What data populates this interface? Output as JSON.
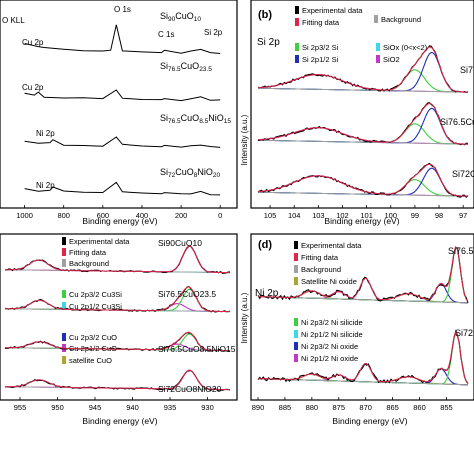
{
  "chart_data": [
    {
      "panel": "a",
      "type": "line",
      "xlabel": "Binding energy (eV)",
      "ylabel": "",
      "xlim": [
        1100,
        -50
      ],
      "xticks": [
        1000,
        800,
        600,
        400,
        200,
        0
      ],
      "xtick_labels": [
        "1000",
        "800",
        "600",
        "400",
        "200",
        "0"
      ],
      "peak_labels": [
        "O KLL",
        "O 1s",
        "Cu 2p",
        "C 1s",
        "Si 2p",
        "Cu 2p",
        "Ni 2p",
        "Ni 2p"
      ],
      "series": [
        {
          "name": "Si90CuO10",
          "label_main": "Si",
          "label_sub": "90",
          "label_main2": "CuO",
          "label_sub2": "10",
          "offset": 3,
          "x": [
            1000,
            930,
            900,
            800,
            700,
            600,
            560,
            531,
            500,
            400,
            300,
            285,
            200,
            150,
            100,
            50,
            0
          ],
          "y": [
            1.2,
            1.0,
            0.8,
            0.6,
            0.5,
            0.45,
            0.5,
            3.4,
            0.5,
            0.35,
            0.3,
            0.55,
            0.25,
            0.4,
            0.6,
            0.3,
            0.2
          ]
        },
        {
          "name": "Si76.5CuO23.5",
          "label_main": "Si",
          "label_sub": "76.5",
          "label_main2": "CuO",
          "label_sub2": "23.5",
          "offset": 2,
          "x": [
            1000,
            950,
            930,
            900,
            800,
            700,
            600,
            531,
            500,
            400,
            300,
            285,
            200,
            150,
            100,
            50,
            0
          ],
          "y": [
            0.9,
            0.8,
            1.1,
            0.6,
            0.5,
            0.4,
            0.38,
            1.4,
            0.45,
            0.3,
            0.28,
            0.45,
            0.22,
            0.35,
            0.55,
            0.25,
            0.2
          ]
        },
        {
          "name": "Si76.5CuO8.5NiO15",
          "label_main": "Si",
          "label_sub": "76.5",
          "label_main2": "CuO",
          "label_sub2": "8.5",
          "label_main3": "NiO",
          "label_sub3": "15",
          "offset": 1,
          "x": [
            1000,
            930,
            870,
            855,
            800,
            700,
            600,
            531,
            500,
            400,
            300,
            285,
            200,
            150,
            100,
            50,
            0
          ],
          "y": [
            0.8,
            0.6,
            0.7,
            1.0,
            0.5,
            0.4,
            0.35,
            1.4,
            0.45,
            0.3,
            0.25,
            0.4,
            0.2,
            0.3,
            0.5,
            0.2,
            0.15
          ]
        },
        {
          "name": "Si72CuO8NiO20",
          "label_main": "Si",
          "label_sub": "72",
          "label_main2": "CuO",
          "label_sub2": "8",
          "label_main3": "NiO",
          "label_sub3": "20",
          "offset": 0,
          "x": [
            1000,
            930,
            870,
            855,
            800,
            700,
            600,
            531,
            500,
            400,
            300,
            285,
            200,
            150,
            100,
            50,
            0
          ],
          "y": [
            0.8,
            0.55,
            0.7,
            1.0,
            0.5,
            0.4,
            0.35,
            1.5,
            0.45,
            0.3,
            0.25,
            0.4,
            0.2,
            0.3,
            0.5,
            0.2,
            0.15
          ]
        }
      ]
    },
    {
      "panel": "b",
      "panel_label": "(b)",
      "type": "line",
      "xlabel": "Binding energy (eV)",
      "ylabel": "Intensity (a.u.)",
      "xlim": [
        105.5,
        96.8
      ],
      "xticks": [
        105,
        104,
        103,
        102,
        101,
        100,
        99,
        98,
        97
      ],
      "xtick_labels": [
        "105",
        "104",
        "103",
        "102",
        "101",
        "100",
        "99",
        "98",
        "97"
      ],
      "region_label": "Si 2p",
      "legend": [
        "Experimental data",
        "Background",
        "Fitting data",
        "Si 2p3/2 Si",
        "Si 2p1/2 Si",
        "SiOx (0<x<2)",
        "SiO2"
      ],
      "sample_labels": [
        "Si7",
        "Si76.5Cu",
        "Si72C"
      ],
      "series": [
        {
          "name": "top",
          "offset": 2,
          "peaks": [
            {
              "center": 103.0,
              "height": 0.38,
              "width": 1.0
            },
            {
              "center": 99.0,
              "height": 0.55,
              "width": 0.4
            },
            {
              "center": 98.3,
              "height": 1.0,
              "width": 0.35
            }
          ]
        },
        {
          "name": "middle",
          "offset": 1,
          "peaks": [
            {
              "center": 103.0,
              "height": 0.35,
              "width": 1.0
            },
            {
              "center": 99.0,
              "height": 0.5,
              "width": 0.4
            },
            {
              "center": 98.3,
              "height": 0.9,
              "width": 0.35
            }
          ]
        },
        {
          "name": "bottom",
          "offset": 0,
          "peaks": [
            {
              "center": 103.0,
              "height": 0.45,
              "width": 1.0
            },
            {
              "center": 99.0,
              "height": 0.4,
              "width": 0.4
            },
            {
              "center": 98.3,
              "height": 0.7,
              "width": 0.35
            }
          ]
        }
      ]
    },
    {
      "panel": "c",
      "type": "line",
      "xlabel": "Binding energy (eV)",
      "ylabel": "",
      "xlim": [
        957,
        927
      ],
      "xticks": [
        955,
        950,
        945,
        940,
        935,
        930
      ],
      "xtick_labels": [
        "955",
        "950",
        "945",
        "940",
        "935",
        "930"
      ],
      "legend": [
        "Experimental data",
        "Fitting data",
        "Background",
        "Cu 2p3/2 Cu3Si",
        "Cu 2p1/2 Cu3Si",
        "Cu 2p3/2 CuO",
        "Cu 2p1/2 CuO",
        "satellite CuO"
      ],
      "sample_labels": [
        "Si90CuO10",
        "Si76.5CuO23.5",
        "Si76.5CuO8.5NiO15",
        "Si72CuO8NiO20"
      ],
      "series": [
        {
          "name": "Si90CuO10",
          "offset": 3,
          "peaks": [
            {
              "center": 952.5,
              "height": 0.35,
              "width": 1.2
            },
            {
              "center": 932.4,
              "height": 0.9,
              "width": 0.9
            }
          ]
        },
        {
          "name": "Si76.5CuO23.5",
          "offset": 2,
          "peaks": [
            {
              "center": 952.4,
              "height": 0.3,
              "width": 1.2
            },
            {
              "center": 934.0,
              "height": 0.25,
              "width": 1.0
            },
            {
              "center": 932.4,
              "height": 0.75,
              "width": 0.9
            }
          ]
        },
        {
          "name": "Si76.5CuO8.5NiO15",
          "offset": 1,
          "peaks": [
            {
              "center": 952.4,
              "height": 0.22,
              "width": 1.3
            },
            {
              "center": 934.0,
              "height": 0.2,
              "width": 1.0
            },
            {
              "center": 932.4,
              "height": 0.55,
              "width": 0.9
            }
          ]
        },
        {
          "name": "Si72CuO8NiO20",
          "offset": 0,
          "peaks": [
            {
              "center": 952.4,
              "height": 0.25,
              "width": 1.3
            },
            {
              "center": 932.4,
              "height": 0.65,
              "width": 0.9
            }
          ]
        }
      ]
    },
    {
      "panel": "d",
      "panel_label": "(d)",
      "type": "line",
      "xlabel": "Binding energy (eV)",
      "ylabel": "Intensity (a.u.)",
      "xlim": [
        890,
        851
      ],
      "xticks": [
        890,
        885,
        880,
        875,
        870,
        865,
        860,
        855
      ],
      "xtick_labels": [
        "890",
        "885",
        "880",
        "875",
        "870",
        "865",
        "860",
        "855"
      ],
      "region_label": "Ni 2p",
      "legend": [
        "Experimental data",
        "Fitting data",
        "Background",
        "Satellite Ni oxide",
        "Ni 2p3/2 Ni silicide",
        "Ni 2p1/2 Ni silicide",
        "Ni 2p3/2 Ni oxide",
        "Ni 2p1/2 Ni oxide"
      ],
      "sample_labels": [
        "Si76.5",
        "Si72"
      ],
      "series": [
        {
          "name": "top",
          "offset": 1,
          "peaks": [
            {
              "center": 880.0,
              "height": 0.12,
              "width": 1.5
            },
            {
              "center": 875.0,
              "height": 0.12,
              "width": 1.2
            },
            {
              "center": 870.0,
              "height": 0.35,
              "width": 1.0
            },
            {
              "center": 862.0,
              "height": 0.12,
              "width": 2.0
            },
            {
              "center": 856.0,
              "height": 0.3,
              "width": 1.0
            },
            {
              "center": 853.2,
              "height": 0.9,
              "width": 0.8
            }
          ]
        },
        {
          "name": "bottom",
          "offset": 0,
          "peaks": [
            {
              "center": 880.0,
              "height": 0.1,
              "width": 1.5
            },
            {
              "center": 875.0,
              "height": 0.1,
              "width": 1.2
            },
            {
              "center": 870.0,
              "height": 0.3,
              "width": 1.0
            },
            {
              "center": 862.0,
              "height": 0.1,
              "width": 2.0
            },
            {
              "center": 856.0,
              "height": 0.25,
              "width": 1.0
            },
            {
              "center": 853.2,
              "height": 0.85,
              "width": 0.8
            }
          ]
        }
      ]
    }
  ],
  "colors": {
    "experimental": "#000000",
    "fitting": "#e0254a",
    "background": "#a0a0a0",
    "green": "#3ecf3e",
    "cyan": "#3fd6e8",
    "blue": "#1f2fb8",
    "magenta": "#c03ac8",
    "olive": "#a8a830",
    "red": "#d01818"
  }
}
